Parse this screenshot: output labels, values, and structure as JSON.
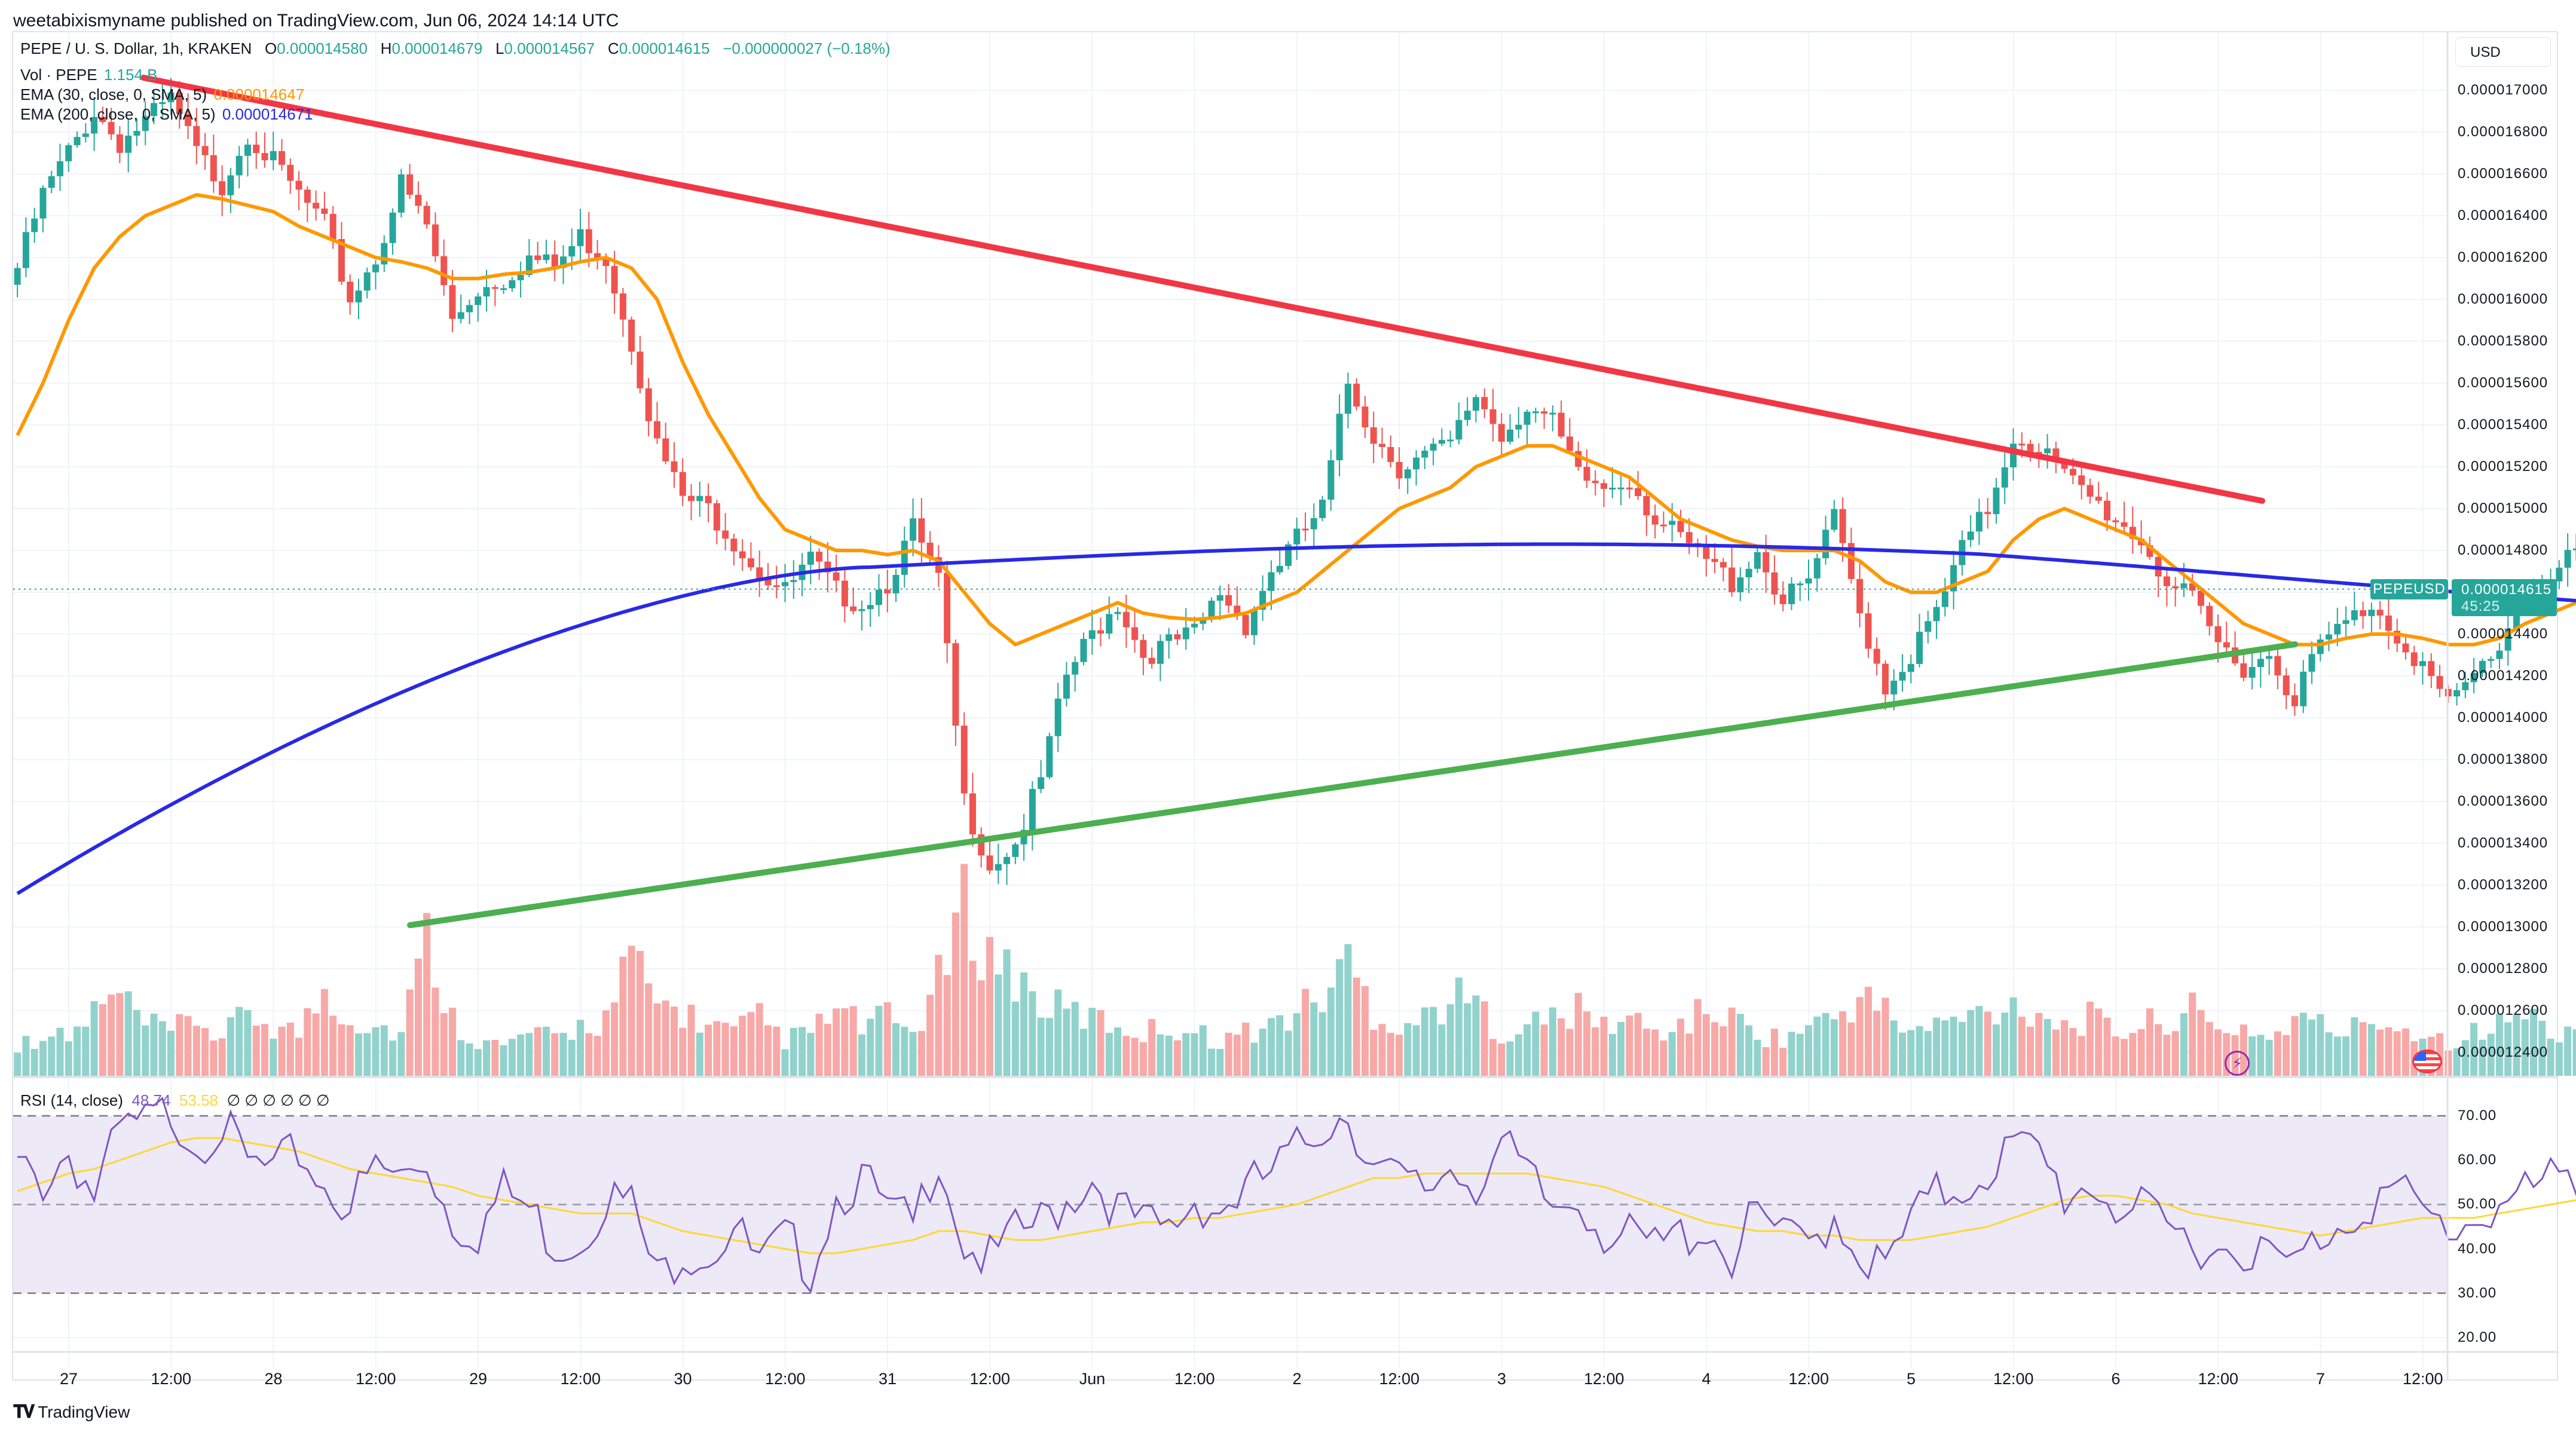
{
  "publisher": "weetabixismyname published on TradingView.com, Jun 06, 2024 14:14 UTC",
  "legend": {
    "symbol": "PEPE / U. S. Dollar, 1h, KRAKEN",
    "o_label": "O",
    "o": "0.000014580",
    "h_label": "H",
    "h": "0.000014679",
    "l_label": "L",
    "l": "0.000014567",
    "c_label": "C",
    "c": "0.000014615",
    "change": "−0.000000027 (−0.18%)",
    "vol_label": "Vol · PEPE",
    "vol": "1.154 B",
    "ema30_label": "EMA (30, close, 0, SMA, 5)",
    "ema30": "0.000014647",
    "ema200_label": "EMA (200, close, 0, SMA, 5)",
    "ema200": "0.000014671"
  },
  "rsi_legend": {
    "label": "RSI (14, close)",
    "rsi": "48.74",
    "rsi_ma": "53.58",
    "nulls": "∅ ∅ ∅ ∅ ∅ ∅"
  },
  "currency_button": "USD",
  "last_price": {
    "symbol": "PEPEUSD",
    "price": "0.000014615",
    "countdown": "45:25"
  },
  "brand": "TradingView",
  "icons": [
    "lightning-icon",
    "us-flag-icon",
    "tradingview-logo-icon"
  ],
  "colors": {
    "up": "#26a69a",
    "down": "#ef5350",
    "ema30": "#ff9800",
    "ema200": "#2929e6",
    "resistance": "#f23645",
    "support": "#4caf50",
    "rsi": "#7e57c2",
    "rsi_ma": "#fdd835",
    "rsi_band": "#ede9f7"
  },
  "chart_data": [
    {
      "type": "candlestick",
      "title": "PEPE / U. S. Dollar, 1h, KRAKEN",
      "units": "price in 1e-9 USD (e.g. 14615 = 0.000014615)",
      "ylim": [
        12300,
        17150
      ],
      "y_ticks": [
        "0.000017000",
        "0.000016800",
        "0.000016600",
        "0.000016400",
        "0.000016200",
        "0.000016000",
        "0.000015800",
        "0.000015600",
        "0.000015400",
        "0.000015200",
        "0.000015000",
        "0.000014800",
        "0.000014600",
        "0.000014400",
        "0.000014200",
        "0.000014000",
        "0.000013800",
        "0.000013600",
        "0.000013400",
        "0.000013200",
        "0.000013000",
        "0.000012800",
        "0.000012600",
        "0.000012400"
      ],
      "x_ticks": [
        "27",
        "12:00",
        "28",
        "12:00",
        "29",
        "12:00",
        "30",
        "12:00",
        "31",
        "12:00",
        "Jun",
        "12:00",
        "2",
        "12:00",
        "3",
        "12:00",
        "4",
        "12:00",
        "5",
        "12:00",
        "6",
        "12:00",
        "7",
        "12:00"
      ],
      "interval": "1h",
      "start": "May 26 20:00",
      "closes_every_3h": [
        16150,
        16500,
        16700,
        16900,
        16750,
        16850,
        16950,
        16700,
        16550,
        16800,
        16650,
        16500,
        16350,
        16000,
        16200,
        16550,
        16350,
        15900,
        16050,
        16100,
        16200,
        16150,
        16300,
        16200,
        15800,
        15300,
        15050,
        15000,
        14850,
        14700,
        14600,
        14750,
        14600,
        14550,
        14650,
        14900,
        14650,
        13600,
        13300,
        13400,
        13700,
        14200,
        14400,
        14550,
        14300,
        14350,
        14400,
        14600,
        14450,
        14700,
        14850,
        15000,
        15600,
        15350,
        15200,
        15250,
        15300,
        15550,
        15350,
        15500,
        15400,
        15150,
        15100,
        15150,
        14950,
        14850,
        14750,
        14650,
        14800,
        14550,
        14650,
        14950,
        14500,
        14150,
        14300,
        14500,
        14800,
        15000,
        15350,
        15300,
        15150,
        15050,
        14950,
        14850,
        14650,
        14550,
        14350,
        14250,
        14300,
        14100,
        14350,
        14450,
        14550,
        14400,
        14250,
        14050,
        14200,
        14350,
        14600,
        14650,
        14800,
        14700,
        14500,
        14300,
        14150,
        14350,
        14550,
        14650,
        14800,
        14750,
        15100,
        14950,
        14800,
        14700,
        14650,
        14615
      ],
      "ema30_every_3h": [
        15350,
        15600,
        15900,
        16150,
        16300,
        16400,
        16450,
        16500,
        16480,
        16450,
        16420,
        16350,
        16300,
        16250,
        16200,
        16180,
        16150,
        16100,
        16100,
        16120,
        16130,
        16150,
        16180,
        16200,
        16150,
        16000,
        15700,
        15450,
        15250,
        15050,
        14900,
        14850,
        14800,
        14800,
        14780,
        14800,
        14750,
        14600,
        14450,
        14350,
        14400,
        14450,
        14500,
        14550,
        14500,
        14480,
        14470,
        14480,
        14500,
        14550,
        14600,
        14700,
        14800,
        14900,
        15000,
        15050,
        15100,
        15200,
        15250,
        15300,
        15300,
        15250,
        15200,
        15150,
        15050,
        14950,
        14900,
        14850,
        14820,
        14800,
        14800,
        14800,
        14750,
        14650,
        14600,
        14600,
        14650,
        14700,
        14850,
        14950,
        15000,
        14950,
        14900,
        14850,
        14750,
        14650,
        14550,
        14450,
        14400,
        14350,
        14350,
        14380,
        14400,
        14400,
        14380,
        14350,
        14350,
        14380,
        14450,
        14500,
        14550,
        14560,
        14560,
        14500,
        14450,
        14450,
        14480,
        14500,
        14550,
        14580,
        14620,
        14640,
        14650,
        14650,
        14648,
        14647
      ],
      "ema200": {
        "start": 13160,
        "end": 14671,
        "shape": "rising from 13160 to ~14700 by May 30 04:00, flat ~14700-14830 thereafter, ending 14671"
      },
      "trendlines": [
        {
          "name": "resistance",
          "from": {
            "x": "May 27 02:00",
            "price": 17100
          },
          "to": {
            "x": "Jun 6 19:00",
            "price": 15070
          }
        },
        {
          "name": "support",
          "from": {
            "x": "May 28 17:00",
            "price": 13000
          },
          "to": {
            "x": "Jun 6 23:00",
            "price": 14330
          }
        }
      ],
      "volume_every_3h": [
        0.4,
        0.6,
        0.5,
        0.9,
        1.1,
        0.7,
        0.6,
        0.8,
        0.5,
        0.9,
        0.7,
        0.6,
        1.2,
        0.8,
        0.7,
        0.6,
        1.9,
        0.8,
        0.5,
        0.4,
        0.6,
        0.5,
        0.7,
        0.8,
        1.6,
        1.0,
        0.9,
        0.7,
        0.6,
        0.8,
        0.5,
        0.6,
        0.9,
        0.7,
        0.8,
        0.6,
        1.3,
        2.3,
        1.7,
        1.4,
        1.0,
        0.9,
        0.8,
        0.7,
        0.6,
        0.7,
        0.6,
        0.5,
        0.6,
        0.7,
        0.9,
        1.1,
        1.6,
        0.9,
        0.7,
        0.8,
        1.1,
        1.0,
        0.6,
        0.7,
        0.8,
        0.9,
        0.7,
        0.8,
        0.6,
        0.7,
        0.9,
        0.8,
        0.6,
        0.5,
        0.7,
        0.8,
        1.1,
        0.9,
        0.6,
        0.7,
        0.8,
        0.9,
        1.0,
        0.9,
        0.7,
        0.8,
        0.6,
        0.7,
        0.8,
        0.9,
        0.6,
        0.7,
        0.5,
        0.8,
        0.7,
        0.6,
        0.8,
        0.7,
        0.6,
        0.5,
        0.6,
        0.7,
        0.9,
        0.6,
        0.7,
        0.5,
        0.6,
        0.5,
        0.7,
        0.6,
        0.5,
        0.4,
        0.5,
        0.6,
        1.2,
        0.8,
        0.6,
        0.5,
        0.4,
        0.3
      ],
      "volume_unit": "B PEPE (relative)"
    },
    {
      "type": "line",
      "title": "RSI (14, close)",
      "ylim": [
        17,
        73
      ],
      "y_ticks": [
        "70.00",
        "60.00",
        "50.00",
        "40.00",
        "30.00",
        "20.00"
      ],
      "bands": {
        "upper": 70,
        "middle": 50,
        "lower": 30
      },
      "rsi_every_3h": [
        58,
        55,
        62,
        52,
        66,
        68,
        71,
        64,
        68,
        59,
        57,
        62,
        54,
        50,
        58,
        56,
        60,
        46,
        44,
        53,
        49,
        41,
        42,
        52,
        50,
        33,
        40,
        39,
        45,
        36,
        42,
        36,
        52,
        56,
        48,
        45,
        62,
        41,
        37,
        43,
        46,
        51,
        56,
        49,
        45,
        44,
        51,
        49,
        53,
        57,
        62,
        68,
        71,
        58,
        55,
        53,
        59,
        55,
        63,
        56,
        49,
        52,
        44,
        42,
        40,
        43,
        45,
        38,
        48,
        42,
        41,
        48,
        39,
        35,
        46,
        52,
        54,
        58,
        63,
        61,
        52,
        55,
        50,
        48,
        44,
        42,
        40,
        41,
        38,
        36,
        43,
        47,
        51,
        53,
        48,
        44,
        47,
        50,
        52,
        55,
        54,
        49,
        46,
        44,
        52,
        56,
        60,
        53,
        50,
        56,
        58,
        52,
        56,
        50,
        52,
        48.74
      ],
      "rsi_ma_every_3h": [
        53,
        55,
        57,
        58,
        60,
        62,
        64,
        65,
        65,
        64,
        63,
        62,
        60,
        58,
        57,
        56,
        55,
        54,
        52,
        51,
        50,
        49,
        48,
        48,
        48,
        46,
        44,
        43,
        42,
        41,
        40,
        39,
        39,
        40,
        41,
        42,
        44,
        44,
        43,
        42,
        42,
        43,
        44,
        45,
        46,
        46,
        47,
        47,
        48,
        49,
        50,
        52,
        54,
        56,
        56,
        57,
        57,
        57,
        57,
        57,
        56,
        55,
        54,
        52,
        50,
        48,
        46,
        45,
        44,
        44,
        43,
        43,
        42,
        42,
        42,
        43,
        44,
        45,
        47,
        49,
        51,
        52,
        52,
        51,
        50,
        48,
        47,
        46,
        45,
        44,
        43,
        44,
        45,
        46,
        47,
        47,
        47,
        48,
        49,
        50,
        51,
        51,
        51,
        51,
        51,
        52,
        53,
        53,
        53,
        54,
        54,
        54,
        54,
        54,
        54,
        53.58
      ],
      "xlabel": "",
      "ylabel": ""
    }
  ]
}
